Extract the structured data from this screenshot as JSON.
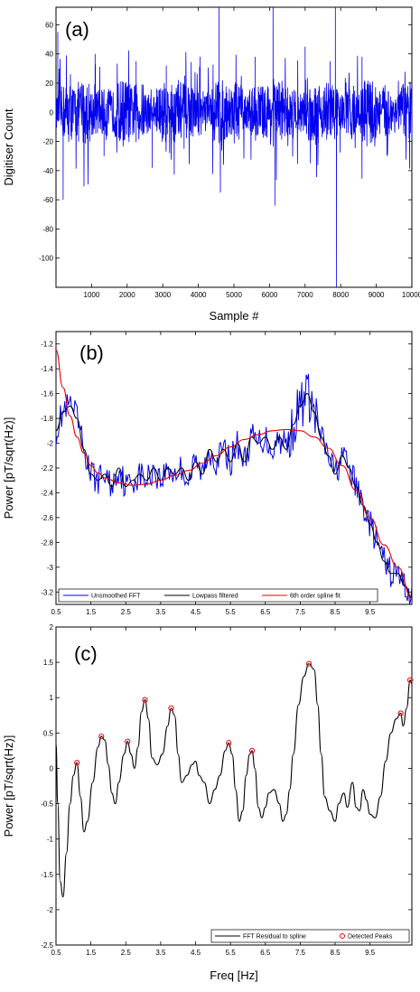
{
  "chart_data": [
    {
      "type": "line",
      "panel_label": "(a)",
      "xlabel": "Sample #",
      "ylabel": "Digitiser Count",
      "xlim": [
        0,
        10000
      ],
      "ylim": [
        -120,
        72
      ],
      "xticks": [
        1000,
        2000,
        3000,
        4000,
        5000,
        6000,
        7000,
        8000,
        9000,
        10000
      ],
      "xtick_labels": [
        "1000",
        "2000",
        "3000",
        "4000",
        "5000",
        "6000",
        "7000",
        "8000",
        "9000",
        "10000"
      ],
      "yticks": [
        -100,
        -80,
        -60,
        -40,
        -20,
        0,
        20,
        40,
        60
      ],
      "ytick_labels": [
        "-100",
        "-80",
        "-60",
        "-40",
        "-20",
        "0",
        "20",
        "40",
        "60"
      ],
      "colors": {
        "signal": "#0000ee"
      },
      "noise_amplitude": 10,
      "spikes": [
        {
          "x": 50,
          "y": 55
        },
        {
          "x": 200,
          "y": -60
        },
        {
          "x": 1100,
          "y": 40
        },
        {
          "x": 1350,
          "y": -30
        },
        {
          "x": 2250,
          "y": 35
        },
        {
          "x": 2700,
          "y": -38
        },
        {
          "x": 3100,
          "y": 32
        },
        {
          "x": 3600,
          "y": -25
        },
        {
          "x": 4050,
          "y": 38
        },
        {
          "x": 4580,
          "y": 72
        },
        {
          "x": 4620,
          "y": -55
        },
        {
          "x": 5600,
          "y": 38
        },
        {
          "x": 6100,
          "y": 72
        },
        {
          "x": 6150,
          "y": -64
        },
        {
          "x": 7000,
          "y": 45
        },
        {
          "x": 7700,
          "y": 35
        },
        {
          "x": 7850,
          "y": 72
        },
        {
          "x": 7880,
          "y": -120
        },
        {
          "x": 8600,
          "y": 38
        },
        {
          "x": 9300,
          "y": -30
        }
      ]
    },
    {
      "type": "line",
      "panel_label": "(b)",
      "xlabel": "",
      "ylabel": "Power [pT/sqrt(Hz)]",
      "xlim": [
        0.5,
        10.7
      ],
      "ylim": [
        -3.3,
        -1.1
      ],
      "xticks": [
        0.5,
        1.5,
        2.5,
        3.5,
        4.5,
        5.5,
        6.5,
        7.5,
        8.5,
        9.5
      ],
      "xtick_labels": [
        "0.5",
        "1.5",
        "2.5",
        "3.5",
        "4.5",
        "5.5",
        "6.5",
        "7.5",
        "8.5",
        "9.5"
      ],
      "yticks": [
        -3.2,
        -3,
        -2.8,
        -2.6,
        -2.4,
        -2.2,
        -2,
        -1.8,
        -1.6,
        -1.4,
        -1.2
      ],
      "ytick_labels": [
        "-3.2",
        "-3",
        "-2.8",
        "-2.6",
        "-2.4",
        "-2.2",
        "-2",
        "-1.8",
        "-1.6",
        "-1.4",
        "-1.2"
      ],
      "legend_placement": "bottom",
      "series": [
        {
          "name": "Unsmoothed FFT",
          "color": "#0000ee"
        },
        {
          "name": "Lowpass filtered",
          "color": "#000000"
        },
        {
          "name": "6th order spline fit",
          "color": "#ee0000"
        }
      ],
      "lowpass_points": [
        [
          0.5,
          -1.9
        ],
        [
          0.7,
          -1.75
        ],
        [
          0.9,
          -1.7
        ],
        [
          1.1,
          -1.8
        ],
        [
          1.3,
          -2.05
        ],
        [
          1.5,
          -2.25
        ],
        [
          1.7,
          -2.3
        ],
        [
          1.9,
          -2.25
        ],
        [
          2.1,
          -2.35
        ],
        [
          2.3,
          -2.2
        ],
        [
          2.5,
          -2.35
        ],
        [
          2.7,
          -2.3
        ],
        [
          2.9,
          -2.25
        ],
        [
          3.1,
          -2.3
        ],
        [
          3.3,
          -2.2
        ],
        [
          3.5,
          -2.3
        ],
        [
          3.7,
          -2.2
        ],
        [
          3.9,
          -2.25
        ],
        [
          4.1,
          -2.2
        ],
        [
          4.3,
          -2.3
        ],
        [
          4.5,
          -2.15
        ],
        [
          4.7,
          -2.25
        ],
        [
          4.9,
          -2.05
        ],
        [
          5.1,
          -2.15
        ],
        [
          5.3,
          -2.05
        ],
        [
          5.5,
          -2.15
        ],
        [
          5.7,
          -2.0
        ],
        [
          5.9,
          -2.15
        ],
        [
          6.1,
          -1.95
        ],
        [
          6.3,
          -2.0
        ],
        [
          6.5,
          -1.95
        ],
        [
          6.7,
          -2.05
        ],
        [
          6.9,
          -1.95
        ],
        [
          7.1,
          -2.05
        ],
        [
          7.3,
          -1.85
        ],
        [
          7.5,
          -1.7
        ],
        [
          7.7,
          -1.6
        ],
        [
          7.9,
          -1.75
        ],
        [
          8.1,
          -1.95
        ],
        [
          8.3,
          -2.1
        ],
        [
          8.5,
          -2.25
        ],
        [
          8.7,
          -2.1
        ],
        [
          8.9,
          -2.2
        ],
        [
          9.1,
          -2.35
        ],
        [
          9.3,
          -2.5
        ],
        [
          9.5,
          -2.65
        ],
        [
          9.7,
          -2.8
        ],
        [
          9.9,
          -2.95
        ],
        [
          10.1,
          -3.05
        ],
        [
          10.3,
          -3.05
        ],
        [
          10.5,
          -3.15
        ],
        [
          10.7,
          -3.25
        ]
      ],
      "spline_points": [
        [
          0.5,
          -1.25
        ],
        [
          0.7,
          -1.55
        ],
        [
          0.9,
          -1.78
        ],
        [
          1.1,
          -1.95
        ],
        [
          1.3,
          -2.08
        ],
        [
          1.5,
          -2.18
        ],
        [
          1.7,
          -2.24
        ],
        [
          1.9,
          -2.28
        ],
        [
          2.3,
          -2.32
        ],
        [
          2.7,
          -2.34
        ],
        [
          3.1,
          -2.33
        ],
        [
          3.5,
          -2.3
        ],
        [
          3.9,
          -2.26
        ],
        [
          4.3,
          -2.22
        ],
        [
          4.7,
          -2.16
        ],
        [
          5.1,
          -2.1
        ],
        [
          5.5,
          -2.03
        ],
        [
          5.9,
          -1.97
        ],
        [
          6.3,
          -1.93
        ],
        [
          6.7,
          -1.9
        ],
        [
          7.1,
          -1.89
        ],
        [
          7.5,
          -1.9
        ],
        [
          7.9,
          -1.95
        ],
        [
          8.3,
          -2.04
        ],
        [
          8.7,
          -2.18
        ],
        [
          9.1,
          -2.38
        ],
        [
          9.5,
          -2.6
        ],
        [
          9.9,
          -2.82
        ],
        [
          10.3,
          -3.0
        ],
        [
          10.7,
          -3.25
        ]
      ],
      "raw_noise_amplitude": 0.12
    },
    {
      "type": "line",
      "panel_label": "(c)",
      "xlabel": "Freq [Hz]",
      "ylabel": "Power [pT/sqrt(Hz)]",
      "xlim": [
        0.5,
        10.7
      ],
      "ylim": [
        -2.5,
        2
      ],
      "xticks": [
        0.5,
        1.5,
        2.5,
        3.5,
        4.5,
        5.5,
        6.5,
        7.5,
        8.5,
        9.5
      ],
      "xtick_labels": [
        "0.5",
        "1.5",
        "2.5",
        "3.5",
        "4.5",
        "5.5",
        "6.5",
        "7.5",
        "8.5",
        "9.5"
      ],
      "yticks": [
        -2.5,
        -2,
        -1.5,
        -1,
        -0.5,
        0,
        0.5,
        1,
        1.5,
        2
      ],
      "ytick_labels": [
        "-2.5",
        "-2",
        "-1.5",
        "-1",
        "-0.5",
        "0",
        "0.5",
        "1",
        "1.5",
        "2"
      ],
      "legend_placement": "bottom-right",
      "series": [
        {
          "name": "FFT Residual to spline",
          "color": "#000000"
        },
        {
          "name": "Detected Peaks",
          "color": "#ee0000"
        }
      ],
      "residual_points": [
        [
          0.5,
          0.35
        ],
        [
          0.55,
          -0.5
        ],
        [
          0.62,
          -1.6
        ],
        [
          0.7,
          -1.82
        ],
        [
          0.8,
          -1.2
        ],
        [
          0.9,
          -0.5
        ],
        [
          1.0,
          -0.1
        ],
        [
          1.1,
          0.08
        ],
        [
          1.2,
          -0.4
        ],
        [
          1.3,
          -0.9
        ],
        [
          1.4,
          -0.75
        ],
        [
          1.55,
          -0.2
        ],
        [
          1.7,
          0.3
        ],
        [
          1.8,
          0.45
        ],
        [
          1.9,
          0.4
        ],
        [
          2.0,
          0.05
        ],
        [
          2.1,
          -0.35
        ],
        [
          2.2,
          -0.5
        ],
        [
          2.3,
          -0.2
        ],
        [
          2.45,
          0.2
        ],
        [
          2.55,
          0.38
        ],
        [
          2.65,
          0.2
        ],
        [
          2.75,
          0.0
        ],
        [
          2.85,
          0.3
        ],
        [
          2.95,
          0.8
        ],
        [
          3.05,
          0.97
        ],
        [
          3.15,
          0.7
        ],
        [
          3.25,
          0.15
        ],
        [
          3.4,
          0.05
        ],
        [
          3.55,
          0.2
        ],
        [
          3.7,
          0.6
        ],
        [
          3.8,
          0.85
        ],
        [
          3.9,
          0.75
        ],
        [
          4.0,
          0.2
        ],
        [
          4.1,
          -0.2
        ],
        [
          4.25,
          -0.1
        ],
        [
          4.4,
          0.05
        ],
        [
          4.5,
          0.1
        ],
        [
          4.6,
          -0.1
        ],
        [
          4.75,
          -0.2
        ],
        [
          4.9,
          -0.5
        ],
        [
          5.05,
          -0.3
        ],
        [
          5.2,
          -0.1
        ],
        [
          5.35,
          0.25
        ],
        [
          5.45,
          0.36
        ],
        [
          5.55,
          0.2
        ],
        [
          5.65,
          -0.3
        ],
        [
          5.75,
          -0.75
        ],
        [
          5.85,
          -0.6
        ],
        [
          5.95,
          -0.1
        ],
        [
          6.05,
          0.2
        ],
        [
          6.12,
          0.25
        ],
        [
          6.2,
          0.0
        ],
        [
          6.3,
          -0.55
        ],
        [
          6.4,
          -0.7
        ],
        [
          6.5,
          -0.55
        ],
        [
          6.6,
          -0.35
        ],
        [
          6.75,
          -0.3
        ],
        [
          6.9,
          -0.5
        ],
        [
          7.0,
          -0.75
        ],
        [
          7.1,
          -0.65
        ],
        [
          7.2,
          -0.3
        ],
        [
          7.3,
          0.2
        ],
        [
          7.45,
          0.9
        ],
        [
          7.6,
          1.3
        ],
        [
          7.75,
          1.48
        ],
        [
          7.9,
          1.4
        ],
        [
          8.0,
          0.9
        ],
        [
          8.1,
          0.2
        ],
        [
          8.2,
          -0.4
        ],
        [
          8.35,
          -0.6
        ],
        [
          8.5,
          -0.75
        ],
        [
          8.6,
          -0.5
        ],
        [
          8.75,
          -0.35
        ],
        [
          8.85,
          -0.55
        ],
        [
          9.0,
          -0.2
        ],
        [
          9.1,
          -0.55
        ],
        [
          9.2,
          -0.6
        ],
        [
          9.3,
          -0.3
        ],
        [
          9.4,
          -0.45
        ],
        [
          9.5,
          -0.65
        ],
        [
          9.65,
          -0.7
        ],
        [
          9.8,
          -0.4
        ],
        [
          9.95,
          0.1
        ],
        [
          10.1,
          0.5
        ],
        [
          10.25,
          0.7
        ],
        [
          10.38,
          0.78
        ],
        [
          10.45,
          0.6
        ],
        [
          10.55,
          0.85
        ],
        [
          10.65,
          1.25
        ],
        [
          10.7,
          1.2
        ]
      ],
      "peaks": [
        {
          "x": 1.1,
          "y": 0.08
        },
        {
          "x": 1.8,
          "y": 0.45
        },
        {
          "x": 2.55,
          "y": 0.38
        },
        {
          "x": 3.05,
          "y": 0.97
        },
        {
          "x": 3.8,
          "y": 0.85
        },
        {
          "x": 5.45,
          "y": 0.36
        },
        {
          "x": 6.12,
          "y": 0.25
        },
        {
          "x": 7.75,
          "y": 1.48
        },
        {
          "x": 10.38,
          "y": 0.78
        },
        {
          "x": 10.65,
          "y": 1.25
        }
      ]
    }
  ]
}
